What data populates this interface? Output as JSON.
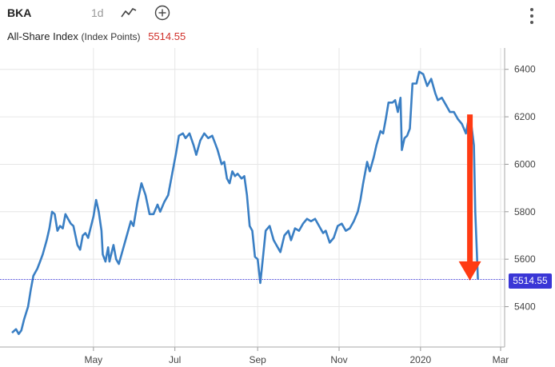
{
  "header": {
    "ticker": "BKA",
    "interval": "1d",
    "chart_type_icon": "line-chart-icon",
    "add_icon": "plus-circle-icon",
    "menu_icon": "more-vertical-icon",
    "series_title": "All-Share Index",
    "series_unit": "(Index Points)",
    "last_value": "5514.55"
  },
  "colors": {
    "line": "#3a7fc4",
    "arrow": "#ff3b13",
    "last_value": "#d0302a",
    "price_tag": "#3a36d6"
  },
  "chart_data": {
    "type": "line",
    "title": "All-Share Index (Index Points)",
    "xlabel": "",
    "ylabel": "",
    "x_ticks": [
      "May",
      "Jul",
      "Sep",
      "Nov",
      "2020",
      "Mar"
    ],
    "y_ticks": [
      5400,
      5600,
      5800,
      6000,
      6200,
      6400
    ],
    "ylim": [
      5230,
      6490
    ],
    "grid": true,
    "y_axis_side": "right",
    "last_value_label": "5514.55",
    "last_value": 5514.55,
    "annotation": "red arrow pointing down from about 6210 to about 5510 near late February",
    "series": [
      {
        "color": "#3a7fc4",
        "points": [
          [
            "2019-03-01",
            5290
          ],
          [
            "2019-03-04",
            5305
          ],
          [
            "2019-03-06",
            5285
          ],
          [
            "2019-03-08",
            5300
          ],
          [
            "2019-03-10",
            5345
          ],
          [
            "2019-03-13",
            5400
          ],
          [
            "2019-03-15",
            5470
          ],
          [
            "2019-03-17",
            5530
          ],
          [
            "2019-03-20",
            5560
          ],
          [
            "2019-03-22",
            5590
          ],
          [
            "2019-03-24",
            5620
          ],
          [
            "2019-03-27",
            5680
          ],
          [
            "2019-03-29",
            5730
          ],
          [
            "2019-03-31",
            5800
          ],
          [
            "2019-04-02",
            5790
          ],
          [
            "2019-04-04",
            5720
          ],
          [
            "2019-04-06",
            5740
          ],
          [
            "2019-04-08",
            5730
          ],
          [
            "2019-04-10",
            5790
          ],
          [
            "2019-04-12",
            5770
          ],
          [
            "2019-04-14",
            5750
          ],
          [
            "2019-04-16",
            5740
          ],
          [
            "2019-04-19",
            5660
          ],
          [
            "2019-04-21",
            5640
          ],
          [
            "2019-04-23",
            5700
          ],
          [
            "2019-04-25",
            5710
          ],
          [
            "2019-04-27",
            5690
          ],
          [
            "2019-05-01",
            5780
          ],
          [
            "2019-05-03",
            5850
          ],
          [
            "2019-05-05",
            5800
          ],
          [
            "2019-05-07",
            5720
          ],
          [
            "2019-05-08",
            5620
          ],
          [
            "2019-05-10",
            5590
          ],
          [
            "2019-05-12",
            5650
          ],
          [
            "2019-05-13",
            5590
          ],
          [
            "2019-05-16",
            5660
          ],
          [
            "2019-05-18",
            5600
          ],
          [
            "2019-05-20",
            5580
          ],
          [
            "2019-05-23",
            5640
          ],
          [
            "2019-05-26",
            5700
          ],
          [
            "2019-05-29",
            5760
          ],
          [
            "2019-05-31",
            5740
          ],
          [
            "2019-06-03",
            5840
          ],
          [
            "2019-06-06",
            5920
          ],
          [
            "2019-06-09",
            5870
          ],
          [
            "2019-06-12",
            5790
          ],
          [
            "2019-06-15",
            5790
          ],
          [
            "2019-06-18",
            5830
          ],
          [
            "2019-06-20",
            5800
          ],
          [
            "2019-06-23",
            5840
          ],
          [
            "2019-06-26",
            5870
          ],
          [
            "2019-06-29",
            5960
          ],
          [
            "2019-07-02",
            6050
          ],
          [
            "2019-07-04",
            6120
          ],
          [
            "2019-07-07",
            6130
          ],
          [
            "2019-07-09",
            6110
          ],
          [
            "2019-07-12",
            6130
          ],
          [
            "2019-07-15",
            6080
          ],
          [
            "2019-07-17",
            6040
          ],
          [
            "2019-07-20",
            6100
          ],
          [
            "2019-07-23",
            6130
          ],
          [
            "2019-07-26",
            6110
          ],
          [
            "2019-07-29",
            6120
          ],
          [
            "2019-07-31",
            6090
          ],
          [
            "2019-08-02",
            6060
          ],
          [
            "2019-08-05",
            6000
          ],
          [
            "2019-08-07",
            6010
          ],
          [
            "2019-08-09",
            5940
          ],
          [
            "2019-08-11",
            5920
          ],
          [
            "2019-08-13",
            5970
          ],
          [
            "2019-08-15",
            5950
          ],
          [
            "2019-08-17",
            5960
          ],
          [
            "2019-08-20",
            5940
          ],
          [
            "2019-08-22",
            5950
          ],
          [
            "2019-08-24",
            5870
          ],
          [
            "2019-08-26",
            5740
          ],
          [
            "2019-08-28",
            5720
          ],
          [
            "2019-08-30",
            5610
          ],
          [
            "2019-09-01",
            5600
          ],
          [
            "2019-09-03",
            5500
          ],
          [
            "2019-09-05",
            5610
          ],
          [
            "2019-09-07",
            5720
          ],
          [
            "2019-09-10",
            5740
          ],
          [
            "2019-09-13",
            5680
          ],
          [
            "2019-09-16",
            5650
          ],
          [
            "2019-09-18",
            5630
          ],
          [
            "2019-09-21",
            5700
          ],
          [
            "2019-09-24",
            5720
          ],
          [
            "2019-09-26",
            5680
          ],
          [
            "2019-09-29",
            5730
          ],
          [
            "2019-10-02",
            5720
          ],
          [
            "2019-10-05",
            5750
          ],
          [
            "2019-10-08",
            5770
          ],
          [
            "2019-10-11",
            5760
          ],
          [
            "2019-10-14",
            5770
          ],
          [
            "2019-10-17",
            5740
          ],
          [
            "2019-10-20",
            5710
          ],
          [
            "2019-10-22",
            5720
          ],
          [
            "2019-10-25",
            5670
          ],
          [
            "2019-10-28",
            5690
          ],
          [
            "2019-10-31",
            5740
          ],
          [
            "2019-11-03",
            5750
          ],
          [
            "2019-11-06",
            5720
          ],
          [
            "2019-11-09",
            5730
          ],
          [
            "2019-11-12",
            5760
          ],
          [
            "2019-11-15",
            5800
          ],
          [
            "2019-11-17",
            5850
          ],
          [
            "2019-11-19",
            5920
          ],
          [
            "2019-11-22",
            6010
          ],
          [
            "2019-11-24",
            5970
          ],
          [
            "2019-11-27",
            6030
          ],
          [
            "2019-11-29",
            6080
          ],
          [
            "2019-12-02",
            6140
          ],
          [
            "2019-12-04",
            6130
          ],
          [
            "2019-12-06",
            6190
          ],
          [
            "2019-12-08",
            6260
          ],
          [
            "2019-12-11",
            6260
          ],
          [
            "2019-12-13",
            6270
          ],
          [
            "2019-12-15",
            6220
          ],
          [
            "2019-12-17",
            6280
          ],
          [
            "2019-12-18",
            6060
          ],
          [
            "2019-12-20",
            6110
          ],
          [
            "2019-12-22",
            6120
          ],
          [
            "2019-12-24",
            6150
          ],
          [
            "2019-12-26",
            6340
          ],
          [
            "2019-12-29",
            6340
          ],
          [
            "2019-12-31",
            6390
          ],
          [
            "2020-01-03",
            6380
          ],
          [
            "2020-01-06",
            6330
          ],
          [
            "2020-01-09",
            6360
          ],
          [
            "2020-01-12",
            6300
          ],
          [
            "2020-01-14",
            6270
          ],
          [
            "2020-01-17",
            6280
          ],
          [
            "2020-01-20",
            6250
          ],
          [
            "2020-01-23",
            6220
          ],
          [
            "2020-01-26",
            6220
          ],
          [
            "2020-01-29",
            6190
          ],
          [
            "2020-02-01",
            6170
          ],
          [
            "2020-02-04",
            6130
          ],
          [
            "2020-02-06",
            6190
          ],
          [
            "2020-02-08",
            6170
          ],
          [
            "2020-02-10",
            6080
          ],
          [
            "2020-02-11",
            5800
          ],
          [
            "2020-02-13",
            5514.55
          ]
        ]
      }
    ]
  }
}
